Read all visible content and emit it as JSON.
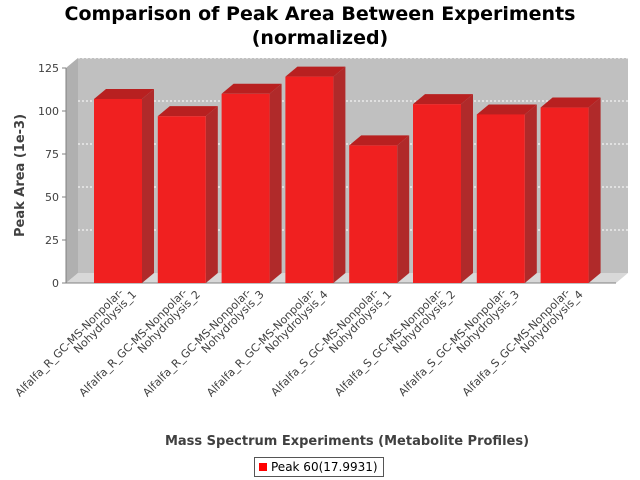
{
  "chart_data": {
    "type": "bar",
    "title": "Comparison of Peak Area Between Experiments",
    "subtitle": "(normalized)",
    "xlabel": "Mass Spectrum Experiments (Metabolite Profiles)",
    "ylabel": "Peak Area (1e-3)",
    "ylim": [
      0,
      125
    ],
    "yticks": [
      "0",
      "25",
      "50",
      "75",
      "100",
      "125"
    ],
    "grid": true,
    "legend_position": "bottom",
    "categories": [
      [
        "Alfalfa_R_GC-MS-Nonpolar-",
        "Nohydrolysis_1"
      ],
      [
        "Alfalfa_R_GC-MS-Nonpolar-",
        "Nohydrolysis_2"
      ],
      [
        "Alfalfa_R_GC-MS-Nonpolar-",
        "Nohydrolysis_3"
      ],
      [
        "Alfalfa_R_GC-MS-Nonpolar-",
        "Nohydrolysis_4"
      ],
      [
        "Alfalfa_S_GC-MS-Nonpolar-",
        "Nohydrolysis_1"
      ],
      [
        "Alfalfa_S_GC-MS-Nonpolar-",
        "Nohydrolysis_2"
      ],
      [
        "Alfalfa_S_GC-MS-Nonpolar-",
        "Nohydrolysis_3"
      ],
      [
        "Alfalfa_S_GC-MS-Nonpolar-",
        "Nohydrolysis_4"
      ]
    ],
    "series": [
      {
        "name": "Peak 60(17.9931)",
        "color": "#ff0000",
        "values": [
          107,
          97,
          110,
          120,
          80,
          104,
          98,
          102
        ]
      }
    ]
  }
}
